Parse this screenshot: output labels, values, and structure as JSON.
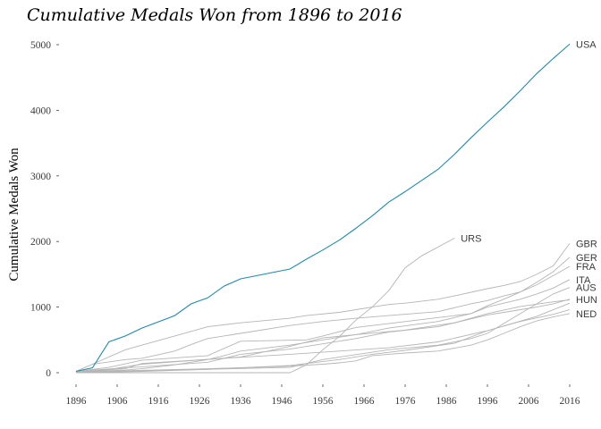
{
  "chart_data": {
    "type": "line",
    "title": "Cumulative Medals Won from 1896 to 2016",
    "ylabel": "Cumulative Medals Won",
    "xlabel": "",
    "xlim": [
      1896,
      2016
    ],
    "ylim": [
      0,
      5000
    ],
    "x_ticks": [
      1896,
      1906,
      1916,
      1926,
      1936,
      1946,
      1956,
      1966,
      1976,
      1986,
      1996,
      2006,
      2016
    ],
    "y_ticks": [
      0,
      1000,
      2000,
      3000,
      4000,
      5000
    ],
    "grid": false,
    "legend": "none",
    "highlight_color": "#1f8bb0",
    "base_color": "#b5b5b5",
    "series": [
      {
        "name": "USA",
        "highlight": true,
        "x": [
          1896,
          1900,
          1904,
          1908,
          1912,
          1920,
          1924,
          1928,
          1932,
          1936,
          1948,
          1952,
          1956,
          1960,
          1964,
          1968,
          1972,
          1976,
          1984,
          1988,
          1992,
          1996,
          2000,
          2004,
          2008,
          2012,
          2016
        ],
        "y": [
          20,
          75,
          470,
          560,
          680,
          870,
          1050,
          1140,
          1320,
          1430,
          1580,
          1730,
          1870,
          2020,
          2200,
          2390,
          2600,
          2760,
          3100,
          3330,
          3580,
          3820,
          4050,
          4300,
          4560,
          4790,
          5010
        ]
      },
      {
        "name": "URS",
        "x": [
          1896,
          1948,
          1952,
          1956,
          1960,
          1964,
          1968,
          1972,
          1976,
          1980,
          1988
        ],
        "y": [
          0,
          0,
          120,
          350,
          550,
          800,
          1000,
          1250,
          1600,
          1780,
          2050
        ]
      },
      {
        "name": "GBR",
        "x": [
          1896,
          1900,
          1908,
          1912,
          1920,
          1924,
          1928,
          1936,
          1948,
          1952,
          1960,
          1968,
          1972,
          1976,
          1984,
          1988,
          1996,
          2000,
          2004,
          2008,
          2012,
          2016
        ],
        "y": [
          20,
          130,
          350,
          420,
          560,
          630,
          700,
          760,
          830,
          870,
          920,
          1000,
          1040,
          1060,
          1120,
          1170,
          1280,
          1330,
          1390,
          1500,
          1630,
          1970
        ]
      },
      {
        "name": "GER",
        "x": [
          1896,
          1904,
          1912,
          1928,
          1936,
          1952,
          1956,
          1964,
          1992,
          1996,
          2000,
          2004,
          2008,
          2012,
          2016
        ],
        "y": [
          20,
          80,
          190,
          260,
          480,
          500,
          560,
          690,
          900,
          1020,
          1120,
          1230,
          1380,
          1540,
          1760
        ]
      },
      {
        "name": "FRA",
        "x": [
          1896,
          1900,
          1908,
          1912,
          1920,
          1924,
          1928,
          1936,
          1948,
          1956,
          1964,
          1972,
          1984,
          1992,
          1996,
          2000,
          2004,
          2008,
          2012,
          2016
        ],
        "y": [
          20,
          130,
          200,
          220,
          330,
          430,
          520,
          600,
          720,
          780,
          830,
          870,
          930,
          1050,
          1100,
          1170,
          1230,
          1340,
          1480,
          1620
        ]
      },
      {
        "name": "ITA",
        "x": [
          1896,
          1900,
          1908,
          1912,
          1920,
          1928,
          1932,
          1936,
          1948,
          1956,
          1964,
          1972,
          1984,
          1992,
          1996,
          2000,
          2004,
          2008,
          2012,
          2016
        ],
        "y": [
          0,
          20,
          40,
          60,
          120,
          200,
          260,
          330,
          420,
          500,
          580,
          680,
          780,
          900,
          1000,
          1060,
          1120,
          1200,
          1290,
          1420
        ]
      },
      {
        "name": "AUS",
        "x": [
          1896,
          1920,
          1948,
          1956,
          1972,
          1984,
          1992,
          1996,
          2000,
          2004,
          2008,
          2012,
          2016
        ],
        "y": [
          0,
          40,
          80,
          200,
          350,
          420,
          520,
          600,
          750,
          900,
          1050,
          1200,
          1300
        ]
      },
      {
        "name": "HUN",
        "x": [
          1896,
          1900,
          1912,
          1928,
          1932,
          1936,
          1948,
          1956,
          1964,
          1972,
          1984,
          1992,
          1996,
          2000,
          2004,
          2008,
          2012,
          2016
        ],
        "y": [
          0,
          40,
          90,
          160,
          220,
          280,
          360,
          440,
          520,
          620,
          700,
          820,
          880,
          920,
          960,
          1000,
          1050,
          1120
        ]
      },
      {
        "name": "NED",
        "x": [
          1896,
          1908,
          1928,
          1948,
          1956,
          1960,
          1964,
          1968,
          1972,
          1976,
          1984,
          1992,
          1996,
          2000,
          2004,
          2008,
          2012,
          2016
        ],
        "y": [
          0,
          30,
          60,
          100,
          130,
          150,
          180,
          260,
          280,
          300,
          330,
          420,
          500,
          600,
          700,
          790,
          850,
          900
        ]
      },
      {
        "name": "",
        "x": [
          1896,
          1904,
          1912,
          1936,
          1948,
          1956,
          1964,
          1976,
          1988,
          1996,
          2004,
          2012,
          2016
        ],
        "y": [
          10,
          50,
          130,
          240,
          400,
          530,
          580,
          650,
          760,
          900,
          1010,
          1080,
          1110
        ]
      },
      {
        "name": "",
        "x": [
          1896,
          1908,
          1912,
          1932,
          1948,
          1960,
          1972,
          1984,
          1996,
          2004,
          2012,
          2016
        ],
        "y": [
          10,
          60,
          140,
          220,
          280,
          330,
          380,
          470,
          640,
          780,
          890,
          960
        ]
      },
      {
        "name": "",
        "x": [
          1896,
          1912,
          1928,
          1948,
          1960,
          1968,
          1976,
          1988,
          1996,
          2008,
          2016
        ],
        "y": [
          0,
          20,
          50,
          110,
          200,
          280,
          340,
          450,
          640,
          860,
          1060
        ]
      }
    ]
  }
}
